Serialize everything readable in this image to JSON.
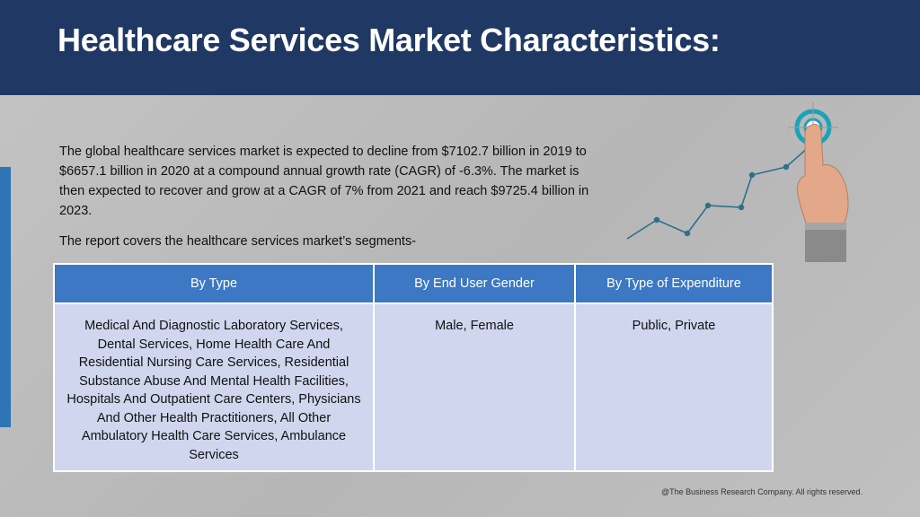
{
  "header": {
    "title": "Healthcare Services Market Characteristics:"
  },
  "intro": "The global healthcare services market is expected to decline from $7102.7 billion in 2019 to $6657.1 billion in 2020 at a compound annual growth rate (CAGR) of -6.3%.  The market is then expected to recover and grow at a CAGR of 7% from 2021 and reach $9725.4 billion in 2023.",
  "segments_intro": "The report covers the healthcare services market’s segments-",
  "table": {
    "headers": [
      "By Type",
      "By End User Gender",
      "By Type of Expenditure"
    ],
    "cells": [
      "Medical And Diagnostic Laboratory Services, Dental Services, Home Health Care And Residential Nursing Care Services, Residential Substance Abuse And Mental Health Facilities, Hospitals And Outpatient Care Centers, Physicians And Other Health Practitioners, All Other Ambulatory Health Care Services, Ambulance Services",
      "Male, Female",
      "Public, Private"
    ]
  },
  "footer": "@The Business Research Company. All rights reserved.",
  "colors": {
    "header": "#1f3864",
    "accent": "#2e75b6",
    "table_header": "#3c78c3",
    "table_cell": "#d0d6ee"
  },
  "icons": {
    "graphic": "growth-line-touch-target-icon"
  }
}
